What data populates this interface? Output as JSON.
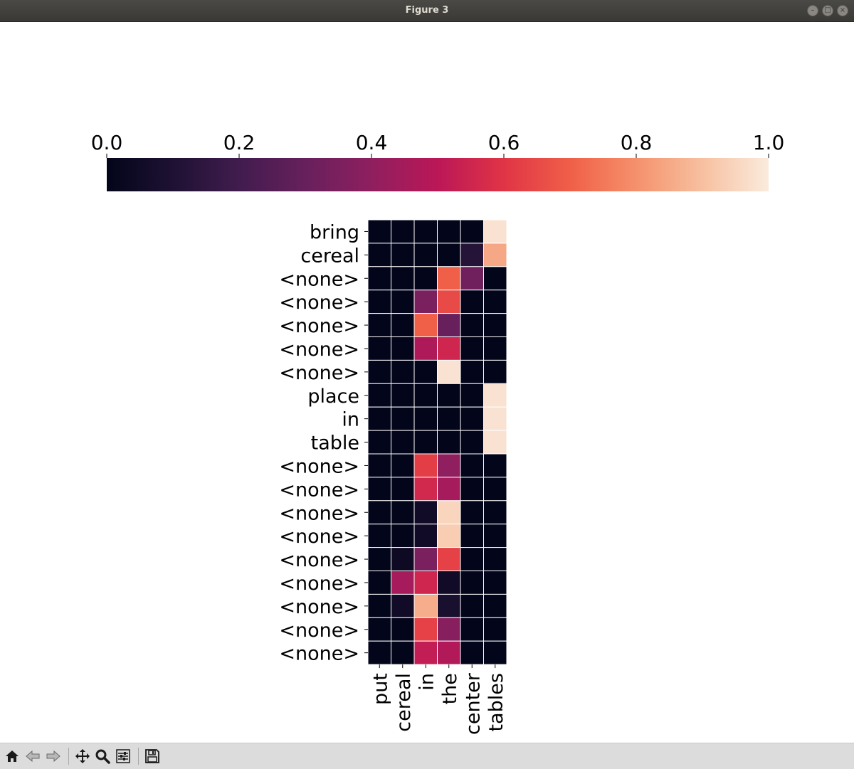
{
  "window": {
    "title": "Figure 3"
  },
  "toolbar": {
    "buttons": [
      {
        "name": "home-button",
        "icon": "home-icon"
      },
      {
        "name": "back-button",
        "icon": "arrow-left-icon"
      },
      {
        "name": "forward-button",
        "icon": "arrow-right-icon"
      },
      {
        "name": "pan-button",
        "icon": "move-icon"
      },
      {
        "name": "zoom-button",
        "icon": "magnifier-icon"
      },
      {
        "name": "configure-subplots-button",
        "icon": "sliders-icon"
      },
      {
        "name": "save-button",
        "icon": "floppy-disk-icon"
      }
    ]
  },
  "chart_data": {
    "type": "heatmap",
    "colormap": "rocket",
    "colorbar": {
      "orientation": "horizontal",
      "placement": "top",
      "range": [
        0.0,
        1.0
      ],
      "ticks": [
        "0.0",
        "0.2",
        "0.4",
        "0.6",
        "0.8",
        "1.0"
      ]
    },
    "x_labels": [
      "put",
      "cereal",
      "in",
      "the",
      "center",
      "tables"
    ],
    "y_labels": [
      "bring",
      "cereal",
      "<none>",
      "<none>",
      "<none>",
      "<none>",
      "<none>",
      "place",
      "in",
      "table",
      "<none>",
      "<none>",
      "<none>",
      "<none>",
      "<none>",
      "<none>",
      "<none>",
      "<none>",
      "<none>"
    ],
    "values": [
      [
        0.0,
        0.0,
        0.0,
        0.0,
        0.0,
        0.98
      ],
      [
        0.0,
        0.0,
        0.0,
        0.0,
        0.12,
        0.85
      ],
      [
        0.0,
        0.0,
        0.0,
        0.7,
        0.32,
        0.0
      ],
      [
        0.0,
        0.0,
        0.35,
        0.65,
        0.0,
        0.0
      ],
      [
        0.0,
        0.0,
        0.7,
        0.3,
        0.0,
        0.0
      ],
      [
        0.0,
        0.0,
        0.47,
        0.55,
        0.0,
        0.0
      ],
      [
        0.0,
        0.0,
        0.0,
        0.98,
        0.0,
        0.0
      ],
      [
        0.0,
        0.0,
        0.0,
        0.0,
        0.0,
        0.98
      ],
      [
        0.0,
        0.0,
        0.0,
        0.0,
        0.0,
        0.98
      ],
      [
        0.0,
        0.0,
        0.0,
        0.0,
        0.0,
        0.98
      ],
      [
        0.0,
        0.0,
        0.62,
        0.4,
        0.0,
        0.0
      ],
      [
        0.0,
        0.0,
        0.56,
        0.45,
        0.0,
        0.0
      ],
      [
        0.0,
        0.0,
        0.05,
        0.95,
        0.0,
        0.0
      ],
      [
        0.0,
        0.0,
        0.05,
        0.93,
        0.0,
        0.0
      ],
      [
        0.0,
        0.04,
        0.35,
        0.63,
        0.0,
        0.0
      ],
      [
        0.0,
        0.45,
        0.55,
        0.05,
        0.0,
        0.0
      ],
      [
        0.0,
        0.05,
        0.86,
        0.08,
        0.0,
        0.0
      ],
      [
        0.0,
        0.0,
        0.63,
        0.38,
        0.0,
        0.0
      ],
      [
        0.0,
        0.0,
        0.52,
        0.48,
        0.0,
        0.0
      ]
    ]
  }
}
